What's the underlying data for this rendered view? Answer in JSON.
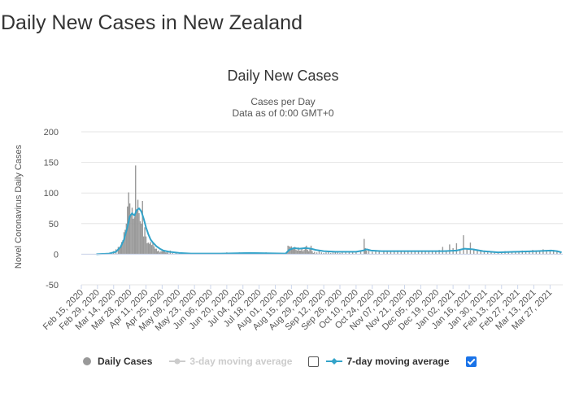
{
  "page": {
    "title": "Daily New Cases in New Zealand"
  },
  "legend": {
    "daily_cases": "Daily Cases",
    "avg3": "3-day moving average",
    "avg7": "7-day moving average"
  },
  "colors": {
    "bars": "#999999",
    "avg7": "#33a3c9",
    "avg3_disabled": "#cccccc"
  },
  "chart_data": {
    "type": "bar",
    "title": "Daily New Cases",
    "subtitle": [
      "Cases per Day",
      "Data as of 0:00 GMT+0"
    ],
    "xlabel": "",
    "ylabel": "Novel Coronavirus Daily Cases",
    "ylim": [
      -50,
      200
    ],
    "yticks": [
      200,
      150,
      100,
      50,
      0,
      -50
    ],
    "x_ticks": [
      "Feb 15, 2020",
      "Feb 29, 2020",
      "Mar 14, 2020",
      "Mar 28, 2020",
      "Apr 11, 2020",
      "Apr 25, 2020",
      "May 09, 2020",
      "May 23, 2020",
      "Jun 06, 2020",
      "Jun 20, 2020",
      "Jul 04, 2020",
      "Jul 18, 2020",
      "Aug 01, 2020",
      "Aug 15, 2020",
      "Aug 29, 2020",
      "Sep 12, 2020",
      "Sep 26, 2020",
      "Oct 10, 2020",
      "Oct 24, 2020",
      "Nov 07, 2020",
      "Nov 21, 2020",
      "Dec 05, 2020",
      "Dec 19, 2020",
      "Jan 02, 2021",
      "Jan 16, 2021",
      "Jan 30, 2021",
      "Feb 13, 2021",
      "Feb 27, 2021",
      "Mar 13, 2021",
      "Mar 27, 2021"
    ],
    "grid": true,
    "legend_position": "bottom",
    "series": [
      {
        "name": "Daily Cases",
        "type": "bar",
        "points": [
          [
            "2020-03-10",
            2
          ],
          [
            "2020-03-12",
            3
          ],
          [
            "2020-03-14",
            5
          ],
          [
            "2020-03-16",
            8
          ],
          [
            "2020-03-18",
            12
          ],
          [
            "2020-03-19",
            10
          ],
          [
            "2020-03-20",
            13
          ],
          [
            "2020-03-21",
            20
          ],
          [
            "2020-03-22",
            23
          ],
          [
            "2020-03-23",
            36
          ],
          [
            "2020-03-24",
            40
          ],
          [
            "2020-03-25",
            50
          ],
          [
            "2020-03-26",
            78
          ],
          [
            "2020-03-27",
            101
          ],
          [
            "2020-03-28",
            83
          ],
          [
            "2020-03-29",
            63
          ],
          [
            "2020-03-30",
            76
          ],
          [
            "2020-03-31",
            58
          ],
          [
            "2020-04-01",
            61
          ],
          [
            "2020-04-02",
            145
          ],
          [
            "2020-04-03",
            71
          ],
          [
            "2020-04-04",
            89
          ],
          [
            "2020-04-05",
            67
          ],
          [
            "2020-04-06",
            54
          ],
          [
            "2020-04-07",
            50
          ],
          [
            "2020-04-08",
            87
          ],
          [
            "2020-04-09",
            29
          ],
          [
            "2020-04-10",
            44
          ],
          [
            "2020-04-11",
            29
          ],
          [
            "2020-04-12",
            18
          ],
          [
            "2020-04-13",
            19
          ],
          [
            "2020-04-14",
            17
          ],
          [
            "2020-04-15",
            20
          ],
          [
            "2020-04-16",
            15
          ],
          [
            "2020-04-17",
            18
          ],
          [
            "2020-04-18",
            13
          ],
          [
            "2020-04-19",
            9
          ],
          [
            "2020-04-20",
            9
          ],
          [
            "2020-04-21",
            5
          ],
          [
            "2020-04-22",
            6
          ],
          [
            "2020-04-23",
            3
          ],
          [
            "2020-04-24",
            5
          ],
          [
            "2020-04-25",
            5
          ],
          [
            "2020-04-26",
            5
          ],
          [
            "2020-04-27",
            5
          ],
          [
            "2020-04-28",
            3
          ],
          [
            "2020-04-29",
            3
          ],
          [
            "2020-04-30",
            3
          ],
          [
            "2020-05-02",
            6
          ],
          [
            "2020-05-04",
            2
          ],
          [
            "2020-05-07",
            2
          ],
          [
            "2020-05-10",
            3
          ],
          [
            "2020-05-14",
            2
          ],
          [
            "2020-06-16",
            2
          ],
          [
            "2020-06-20",
            3
          ],
          [
            "2020-06-25",
            2
          ],
          [
            "2020-07-01",
            3
          ],
          [
            "2020-07-05",
            2
          ],
          [
            "2020-07-10",
            3
          ],
          [
            "2020-07-17",
            2
          ],
          [
            "2020-07-24",
            3
          ],
          [
            "2020-08-11",
            4
          ],
          [
            "2020-08-12",
            14
          ],
          [
            "2020-08-13",
            13
          ],
          [
            "2020-08-14",
            12
          ],
          [
            "2020-08-15",
            13
          ],
          [
            "2020-08-16",
            9
          ],
          [
            "2020-08-17",
            9
          ],
          [
            "2020-08-18",
            12
          ],
          [
            "2020-08-19",
            7
          ],
          [
            "2020-08-20",
            6
          ],
          [
            "2020-08-21",
            11
          ],
          [
            "2020-08-22",
            6
          ],
          [
            "2020-08-23",
            6
          ],
          [
            "2020-08-24",
            9
          ],
          [
            "2020-08-25",
            5
          ],
          [
            "2020-08-26",
            7
          ],
          [
            "2020-08-27",
            12
          ],
          [
            "2020-08-28",
            14
          ],
          [
            "2020-08-29",
            7
          ],
          [
            "2020-08-30",
            5
          ],
          [
            "2020-08-31",
            9
          ],
          [
            "2020-09-01",
            14
          ],
          [
            "2020-09-02",
            5
          ],
          [
            "2020-09-03",
            2
          ],
          [
            "2020-09-04",
            4
          ],
          [
            "2020-09-06",
            3
          ],
          [
            "2020-09-08",
            6
          ],
          [
            "2020-09-10",
            3
          ],
          [
            "2020-09-12",
            2
          ],
          [
            "2020-09-14",
            3
          ],
          [
            "2020-09-16",
            4
          ],
          [
            "2020-09-18",
            2
          ],
          [
            "2020-09-20",
            3
          ],
          [
            "2020-09-22",
            4
          ],
          [
            "2020-09-24",
            3
          ],
          [
            "2020-09-26",
            2
          ],
          [
            "2020-09-28",
            3
          ],
          [
            "2020-10-01",
            4
          ],
          [
            "2020-10-04",
            3
          ],
          [
            "2020-10-07",
            4
          ],
          [
            "2020-10-10",
            3
          ],
          [
            "2020-10-14",
            5
          ],
          [
            "2020-10-17",
            25
          ],
          [
            "2020-10-18",
            10
          ],
          [
            "2020-10-19",
            6
          ],
          [
            "2020-10-21",
            8
          ],
          [
            "2020-10-24",
            4
          ],
          [
            "2020-10-27",
            5
          ],
          [
            "2020-10-30",
            4
          ],
          [
            "2020-11-03",
            6
          ],
          [
            "2020-11-06",
            5
          ],
          [
            "2020-11-09",
            6
          ],
          [
            "2020-11-12",
            5
          ],
          [
            "2020-11-15",
            6
          ],
          [
            "2020-11-18",
            4
          ],
          [
            "2020-11-21",
            5
          ],
          [
            "2020-11-24",
            6
          ],
          [
            "2020-11-27",
            4
          ],
          [
            "2020-11-30",
            5
          ],
          [
            "2020-12-03",
            6
          ],
          [
            "2020-12-06",
            5
          ],
          [
            "2020-12-09",
            4
          ],
          [
            "2020-12-12",
            5
          ],
          [
            "2020-12-15",
            6
          ],
          [
            "2020-12-18",
            4
          ],
          [
            "2020-12-21",
            7
          ],
          [
            "2020-12-24",
            12
          ],
          [
            "2020-12-27",
            5
          ],
          [
            "2020-12-30",
            16
          ],
          [
            "2021-01-02",
            10
          ],
          [
            "2021-01-05",
            18
          ],
          [
            "2021-01-08",
            6
          ],
          [
            "2021-01-11",
            31
          ],
          [
            "2021-01-14",
            8
          ],
          [
            "2021-01-17",
            19
          ],
          [
            "2021-01-20",
            9
          ],
          [
            "2021-01-23",
            6
          ],
          [
            "2021-01-26",
            7
          ],
          [
            "2021-01-29",
            5
          ],
          [
            "2021-02-01",
            3
          ],
          [
            "2021-02-04",
            4
          ],
          [
            "2021-02-07",
            3
          ],
          [
            "2021-02-10",
            4
          ],
          [
            "2021-02-13",
            3
          ],
          [
            "2021-02-16",
            5
          ],
          [
            "2021-02-19",
            4
          ],
          [
            "2021-02-22",
            3
          ],
          [
            "2021-02-25",
            5
          ],
          [
            "2021-02-28",
            4
          ],
          [
            "2021-03-03",
            6
          ],
          [
            "2021-03-06",
            5
          ],
          [
            "2021-03-09",
            4
          ],
          [
            "2021-03-12",
            7
          ],
          [
            "2021-03-15",
            6
          ],
          [
            "2021-03-18",
            5
          ],
          [
            "2021-03-21",
            8
          ],
          [
            "2021-03-24",
            6
          ],
          [
            "2021-03-27",
            5
          ],
          [
            "2021-03-30",
            7
          ],
          [
            "2021-04-02",
            5
          ],
          [
            "2021-04-05",
            4
          ]
        ]
      },
      {
        "name": "7-day moving average",
        "type": "line",
        "points": [
          [
            "2020-02-28",
            0
          ],
          [
            "2020-03-10",
            1
          ],
          [
            "2020-03-16",
            4
          ],
          [
            "2020-03-20",
            12
          ],
          [
            "2020-03-23",
            24
          ],
          [
            "2020-03-26",
            45
          ],
          [
            "2020-03-28",
            62
          ],
          [
            "2020-03-30",
            67
          ],
          [
            "2020-04-01",
            63
          ],
          [
            "2020-04-03",
            72
          ],
          [
            "2020-04-05",
            75
          ],
          [
            "2020-04-07",
            70
          ],
          [
            "2020-04-09",
            58
          ],
          [
            "2020-04-11",
            44
          ],
          [
            "2020-04-13",
            33
          ],
          [
            "2020-04-15",
            24
          ],
          [
            "2020-04-17",
            19
          ],
          [
            "2020-04-20",
            13
          ],
          [
            "2020-04-23",
            9
          ],
          [
            "2020-04-26",
            6
          ],
          [
            "2020-05-01",
            4
          ],
          [
            "2020-05-10",
            2
          ],
          [
            "2020-05-20",
            1
          ],
          [
            "2020-06-15",
            1
          ],
          [
            "2020-07-10",
            2
          ],
          [
            "2020-08-10",
            1
          ],
          [
            "2020-08-13",
            7
          ],
          [
            "2020-08-17",
            10
          ],
          [
            "2020-08-22",
            9
          ],
          [
            "2020-08-27",
            10
          ],
          [
            "2020-09-01",
            9
          ],
          [
            "2020-09-05",
            7
          ],
          [
            "2020-09-12",
            5
          ],
          [
            "2020-09-22",
            4
          ],
          [
            "2020-10-10",
            4
          ],
          [
            "2020-10-16",
            6
          ],
          [
            "2020-10-19",
            8
          ],
          [
            "2020-10-23",
            6
          ],
          [
            "2020-11-01",
            5
          ],
          [
            "2020-11-20",
            5
          ],
          [
            "2020-12-10",
            5
          ],
          [
            "2020-12-25",
            5
          ],
          [
            "2021-01-05",
            6
          ],
          [
            "2021-01-12",
            9
          ],
          [
            "2021-01-19",
            8
          ],
          [
            "2021-01-28",
            5
          ],
          [
            "2021-02-10",
            3
          ],
          [
            "2021-02-25",
            4
          ],
          [
            "2021-03-15",
            5
          ],
          [
            "2021-03-28",
            6
          ],
          [
            "2021-04-02",
            5
          ],
          [
            "2021-04-06",
            3
          ]
        ]
      }
    ]
  }
}
